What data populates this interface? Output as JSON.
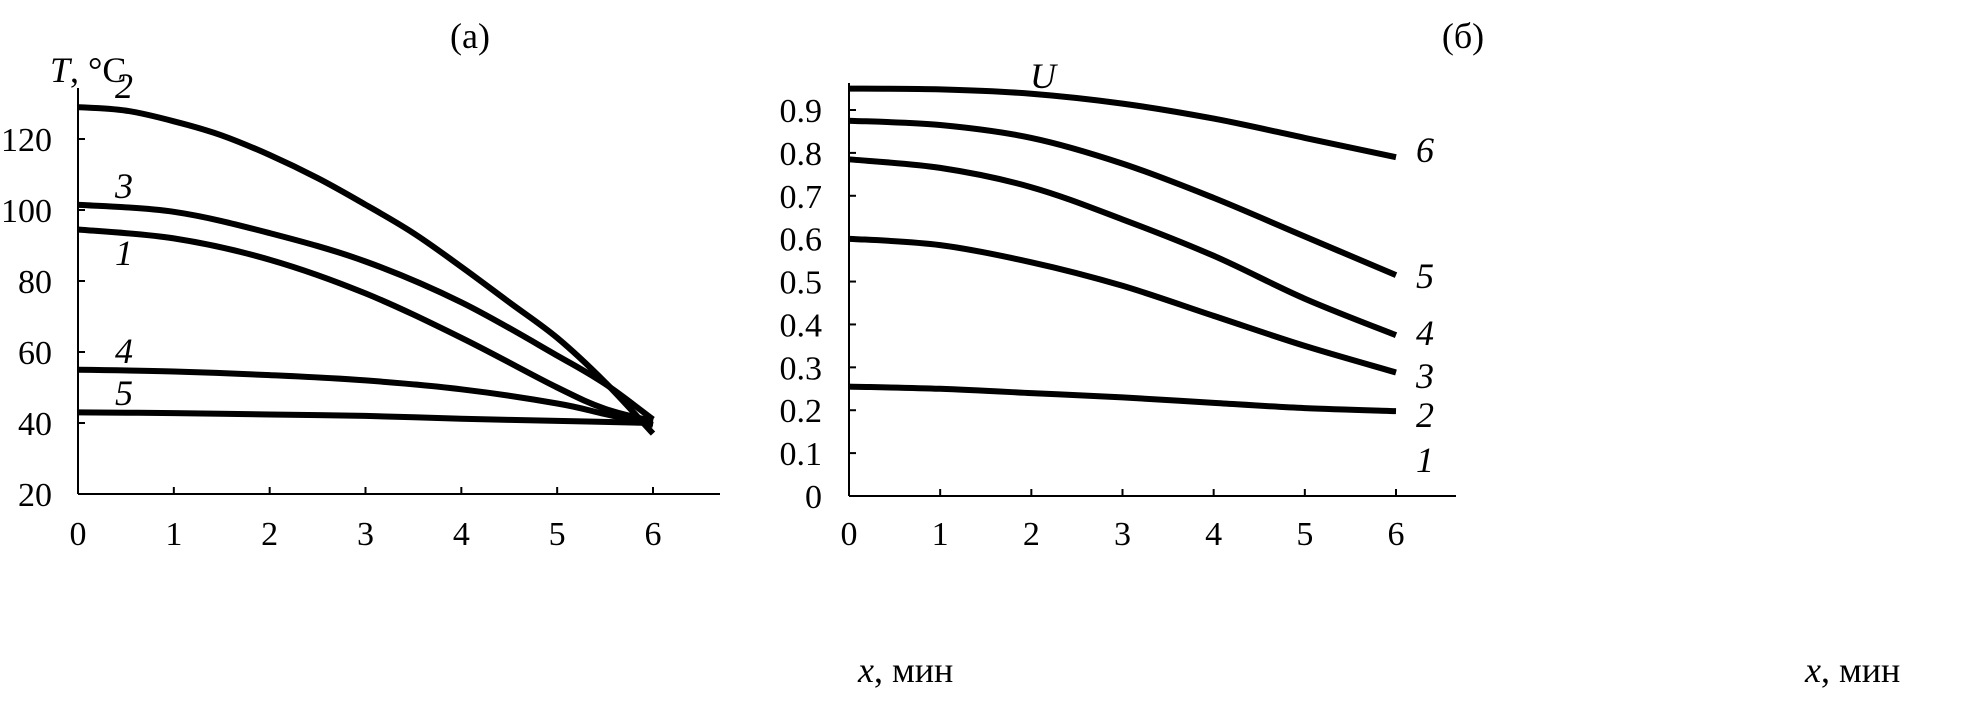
{
  "chart_data": [
    {
      "type": "line",
      "panel_label": "(а)",
      "ylabel_var": "T",
      "ylabel_unit": ", °C",
      "xlabel_var": "x",
      "xlabel_unit": ", мин",
      "xlim": [
        0,
        6.7
      ],
      "ylim": [
        20,
        138
      ],
      "xticks": [
        0,
        1,
        2,
        3,
        4,
        5,
        6
      ],
      "yticks": [
        20,
        40,
        60,
        80,
        100,
        120
      ],
      "series": [
        {
          "name": "1",
          "x": [
            0,
            1,
            2,
            3,
            4,
            5,
            5.5,
            6
          ],
          "y": [
            94.5,
            92,
            86,
            76.5,
            64,
            50,
            44,
            40.5
          ]
        },
        {
          "name": "2",
          "x": [
            0,
            0.5,
            1,
            1.5,
            2,
            2.5,
            3,
            3.5,
            4,
            4.5,
            5,
            5.5,
            6
          ],
          "y": [
            129,
            128,
            125,
            121,
            115.5,
            109,
            101.5,
            93.5,
            84,
            74,
            64,
            51.5,
            37
          ]
        },
        {
          "name": "3",
          "x": [
            0,
            1,
            2,
            3,
            4,
            5,
            5.5,
            6
          ],
          "y": [
            101.5,
            99.5,
            93.5,
            85.5,
            74,
            59,
            51,
            41
          ]
        },
        {
          "name": "4",
          "x": [
            0,
            1,
            2,
            3,
            4,
            5,
            5.5,
            6
          ],
          "y": [
            55,
            54.5,
            53.5,
            52,
            49.5,
            45.5,
            42.5,
            39.5
          ]
        },
        {
          "name": "5",
          "x": [
            0,
            1,
            2,
            3,
            4,
            5,
            6
          ],
          "y": [
            43,
            42.8,
            42.4,
            42,
            41.2,
            40.6,
            40
          ]
        }
      ]
    },
    {
      "type": "line",
      "panel_label": "(б)",
      "ylabel_var": "U",
      "ylabel_unit": "",
      "xlabel_var": "x",
      "xlabel_unit": ", мин",
      "xlim": [
        0,
        6.7
      ],
      "ylim": [
        0,
        1.0
      ],
      "xticks": [
        0,
        1,
        2,
        3,
        4,
        5,
        6
      ],
      "yticks": [
        0,
        0.1,
        0.2,
        0.3,
        0.4,
        0.5,
        0.6,
        0.7,
        0.8,
        0.9
      ],
      "series": [
        {
          "name": "2",
          "x": [
            0,
            1,
            2,
            3,
            4,
            5,
            6
          ],
          "y": [
            0.255,
            0.25,
            0.24,
            0.23,
            0.217,
            0.205,
            0.198
          ]
        },
        {
          "name": "3",
          "x": [
            0,
            1,
            2,
            3,
            4,
            5,
            6
          ],
          "y": [
            0.6,
            0.585,
            0.545,
            0.49,
            0.42,
            0.35,
            0.288
          ]
        },
        {
          "name": "4",
          "x": [
            0,
            1,
            2,
            3,
            4,
            5,
            6
          ],
          "y": [
            0.785,
            0.765,
            0.72,
            0.645,
            0.56,
            0.46,
            0.375
          ]
        },
        {
          "name": "5",
          "x": [
            0,
            1,
            2,
            3,
            4,
            5,
            6
          ],
          "y": [
            0.875,
            0.865,
            0.835,
            0.775,
            0.695,
            0.605,
            0.515
          ]
        },
        {
          "name": "6",
          "x": [
            0,
            1,
            2,
            3,
            4,
            5,
            6
          ],
          "y": [
            0.95,
            0.948,
            0.938,
            0.915,
            0.88,
            0.835,
            0.79
          ]
        }
      ],
      "extra_labels": [
        "1"
      ]
    }
  ]
}
